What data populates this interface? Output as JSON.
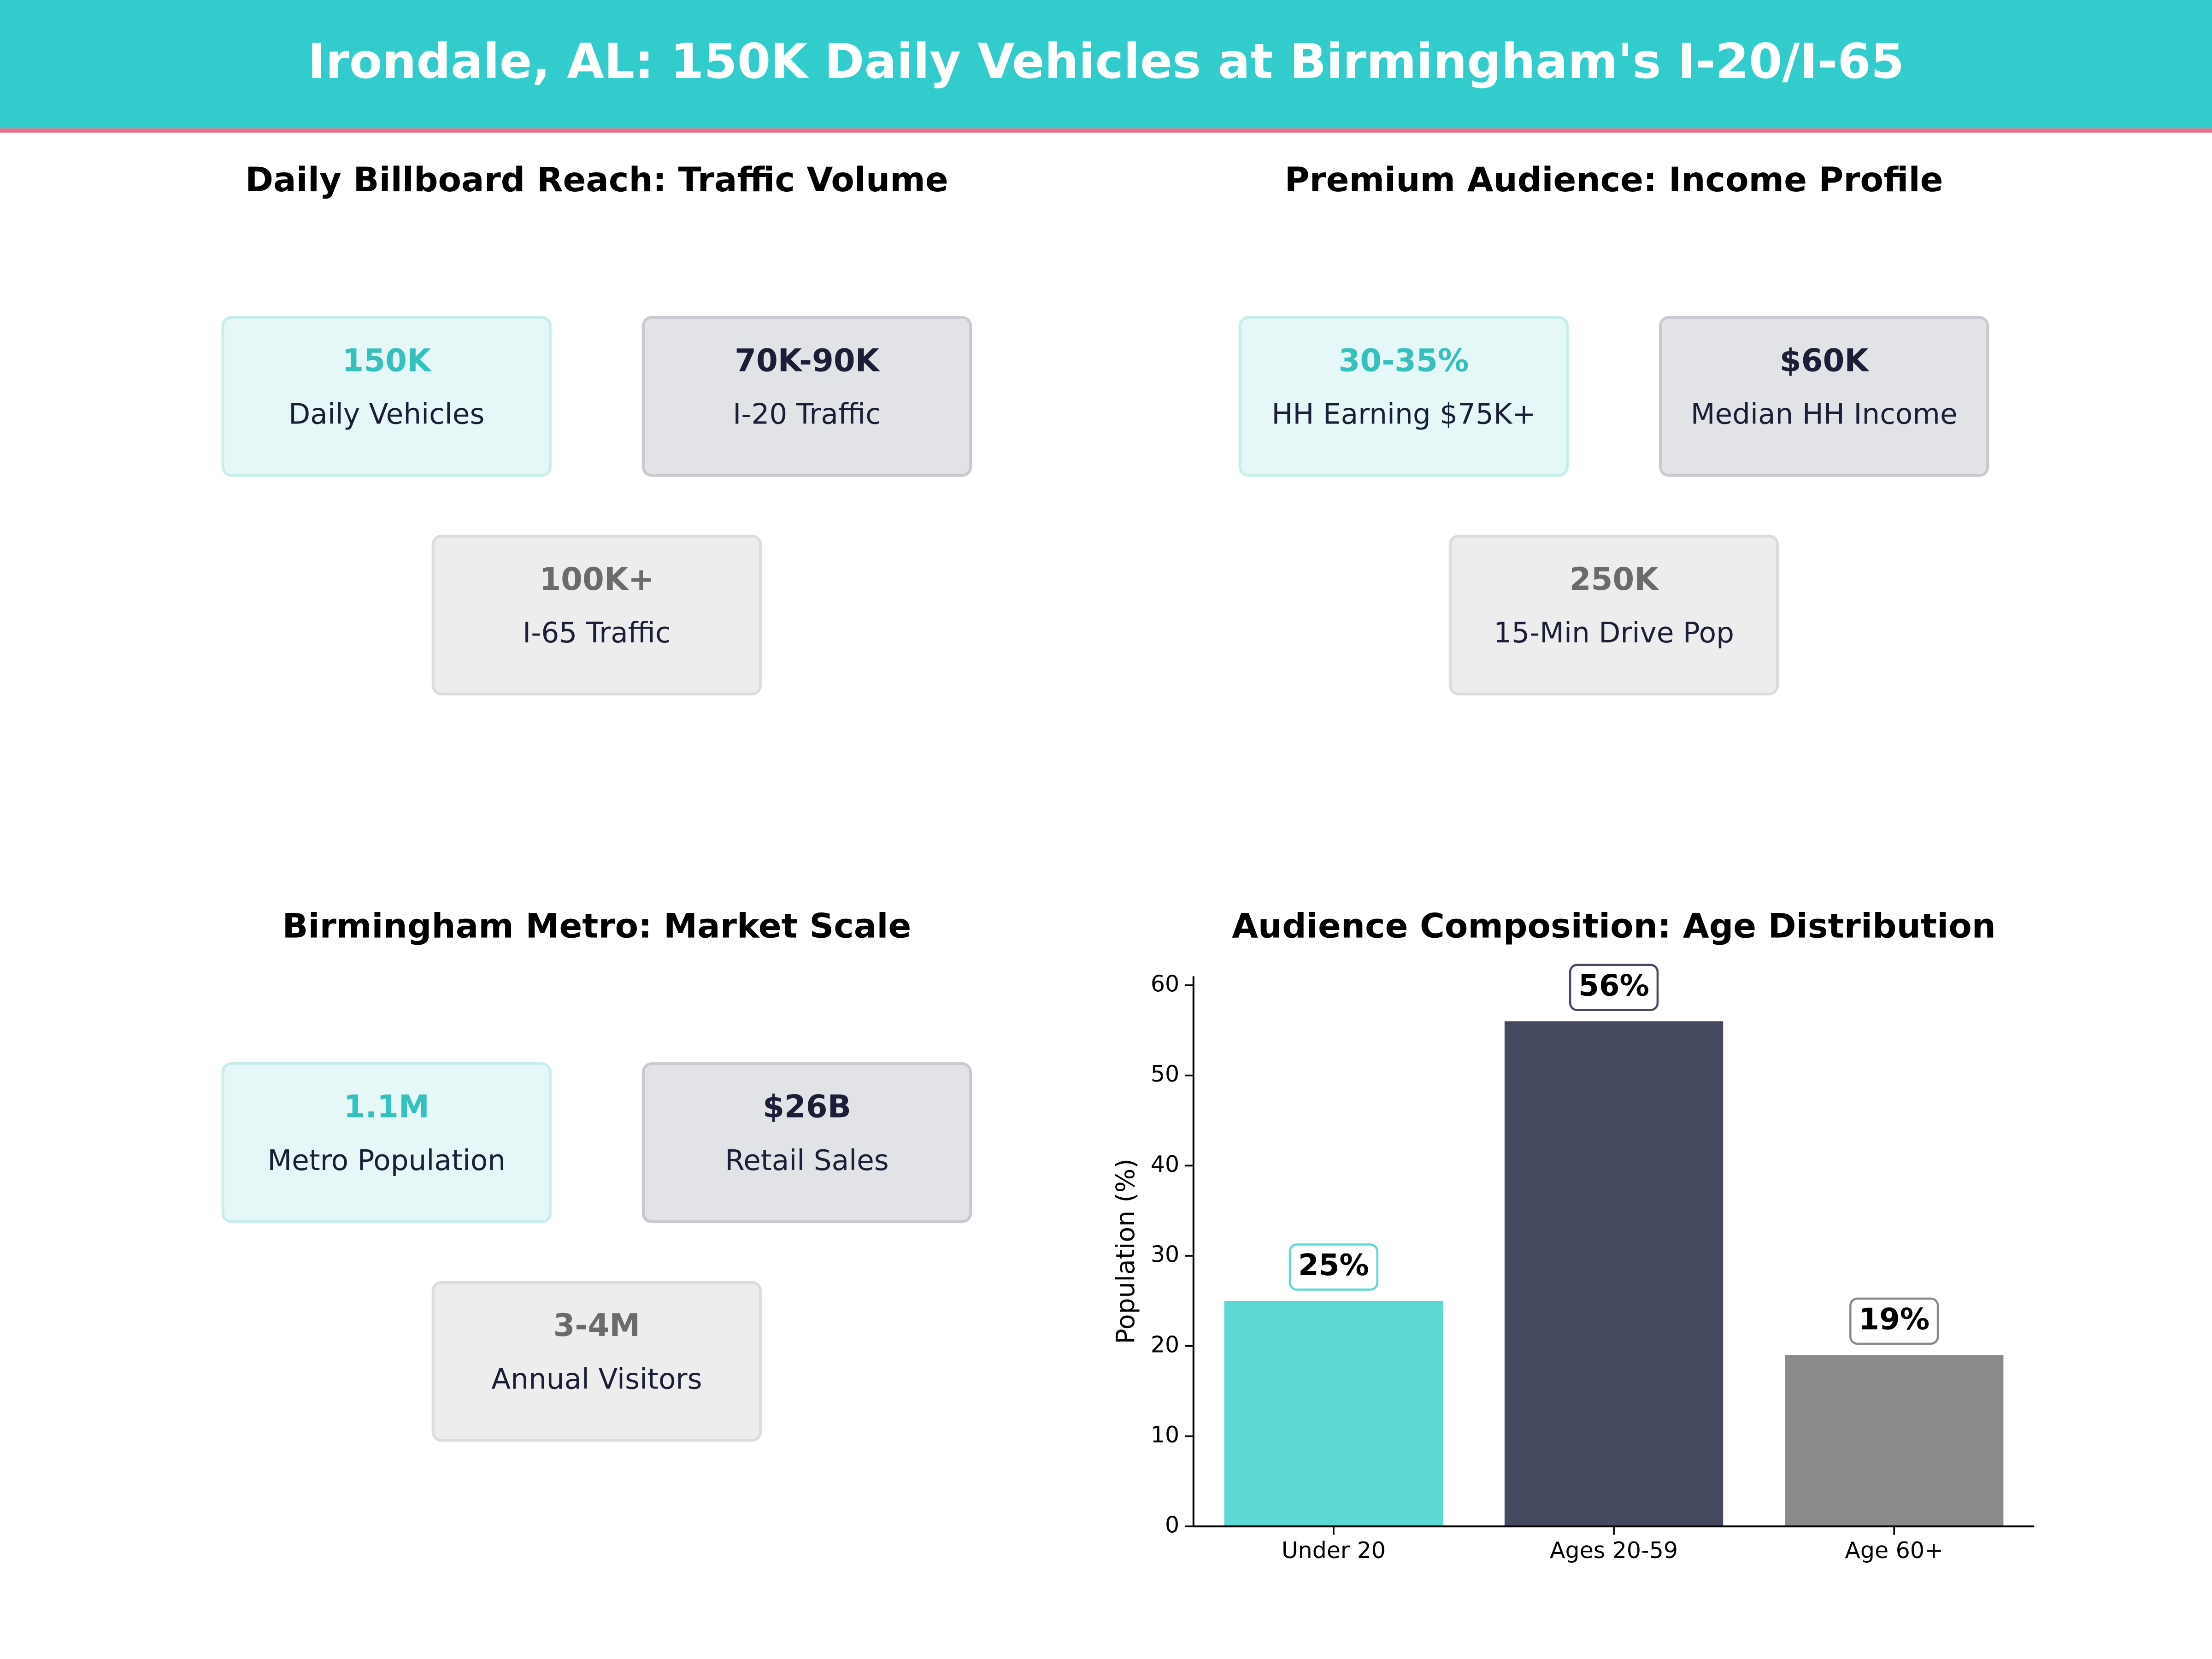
{
  "header": {
    "title": "Irondale, AL: 150K Daily Vehicles at Birmingham's I-20/I-65"
  },
  "panels": [
    {
      "title": "Daily Billboard Reach: Traffic Volume",
      "cards": [
        {
          "value": "150K",
          "label": "Daily Vehicles"
        },
        {
          "value": "70K-90K",
          "label": "I-20 Traffic"
        },
        {
          "value": "100K+",
          "label": "I-65 Traffic"
        }
      ]
    },
    {
      "title": "Premium Audience: Income Profile",
      "cards": [
        {
          "value": "30-35%",
          "label": "HH Earning $75K+"
        },
        {
          "value": "$60K",
          "label": "Median HH Income"
        },
        {
          "value": "250K",
          "label": "15-Min Drive Pop"
        }
      ]
    },
    {
      "title": "Birmingham Metro: Market Scale",
      "cards": [
        {
          "value": "1.1M",
          "label": "Metro Population"
        },
        {
          "value": "$26B",
          "label": "Retail Sales"
        },
        {
          "value": "3-4M",
          "label": "Annual Visitors"
        }
      ]
    }
  ],
  "chart_data": {
    "type": "bar",
    "title": "Audience Composition: Age Distribution",
    "ylabel": "Population (%)",
    "categories": [
      "Under 20",
      "Ages 20-59",
      "Age 60+"
    ],
    "values": [
      25,
      56,
      19
    ],
    "value_labels": [
      "25%",
      "56%",
      "19%"
    ],
    "colors": [
      "#5dd8d4",
      "#454a60",
      "#8a8a8a"
    ],
    "ylim": [
      0,
      61
    ],
    "yticks": [
      0,
      10,
      20,
      30,
      40,
      50,
      60
    ]
  }
}
